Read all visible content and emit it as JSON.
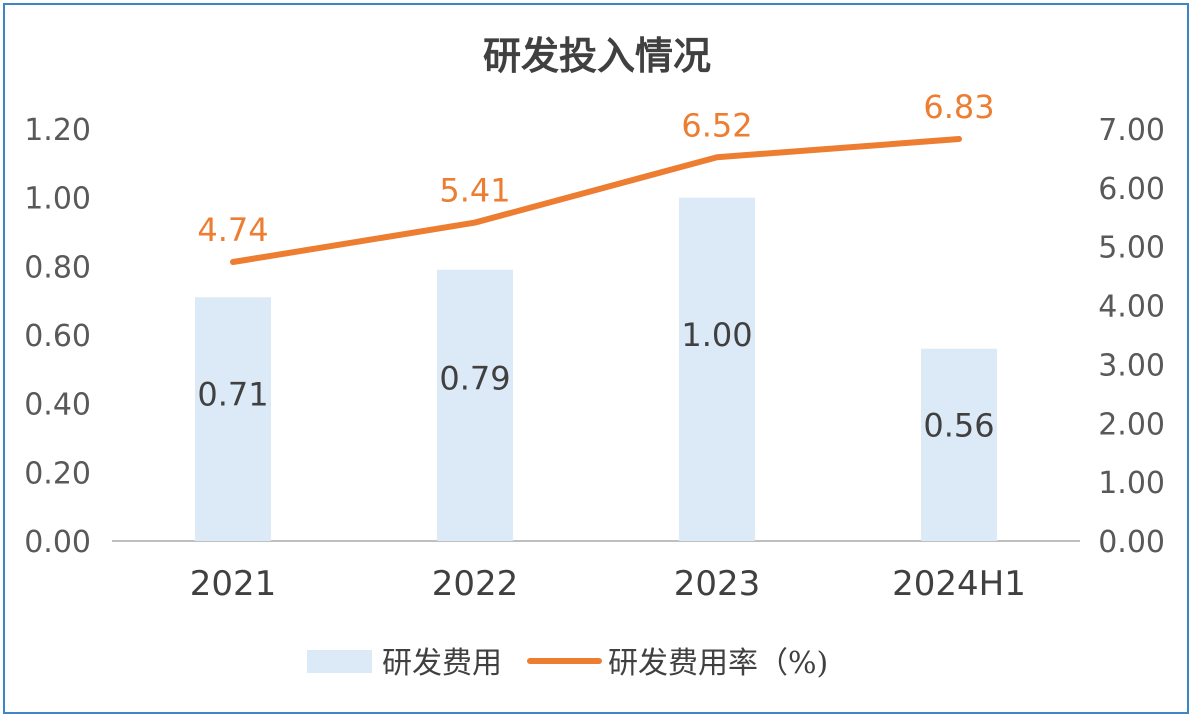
{
  "chart_data": {
    "type": "bar",
    "title": "研发投入情况",
    "categories": [
      "2021",
      "2022",
      "2023",
      "2024H1"
    ],
    "series": [
      {
        "name": "研发费用",
        "type": "bar",
        "axis": "left",
        "values": [
          0.71,
          0.79,
          1.0,
          0.56
        ],
        "labels": [
          "0.71",
          "0.79",
          "1.00",
          "0.56"
        ],
        "color": "#dce9f6"
      },
      {
        "name": "研发费用率（%)",
        "type": "line",
        "axis": "right",
        "values": [
          4.74,
          5.41,
          6.52,
          6.83
        ],
        "labels": [
          "4.74",
          "5.41",
          "6.52",
          "6.83"
        ],
        "color": "#ed7d31"
      }
    ],
    "left_axis": {
      "ylim": [
        0,
        1.2
      ],
      "ticks": [
        "0.00",
        "0.20",
        "0.40",
        "0.60",
        "0.80",
        "1.00",
        "1.20"
      ]
    },
    "right_axis": {
      "ylim": [
        0,
        7
      ],
      "ticks": [
        "0.00",
        "1.00",
        "2.00",
        "3.00",
        "4.00",
        "5.00",
        "6.00",
        "7.00"
      ]
    },
    "grid": false,
    "legend_position": "bottom",
    "frame_color": "#3f86c9"
  }
}
